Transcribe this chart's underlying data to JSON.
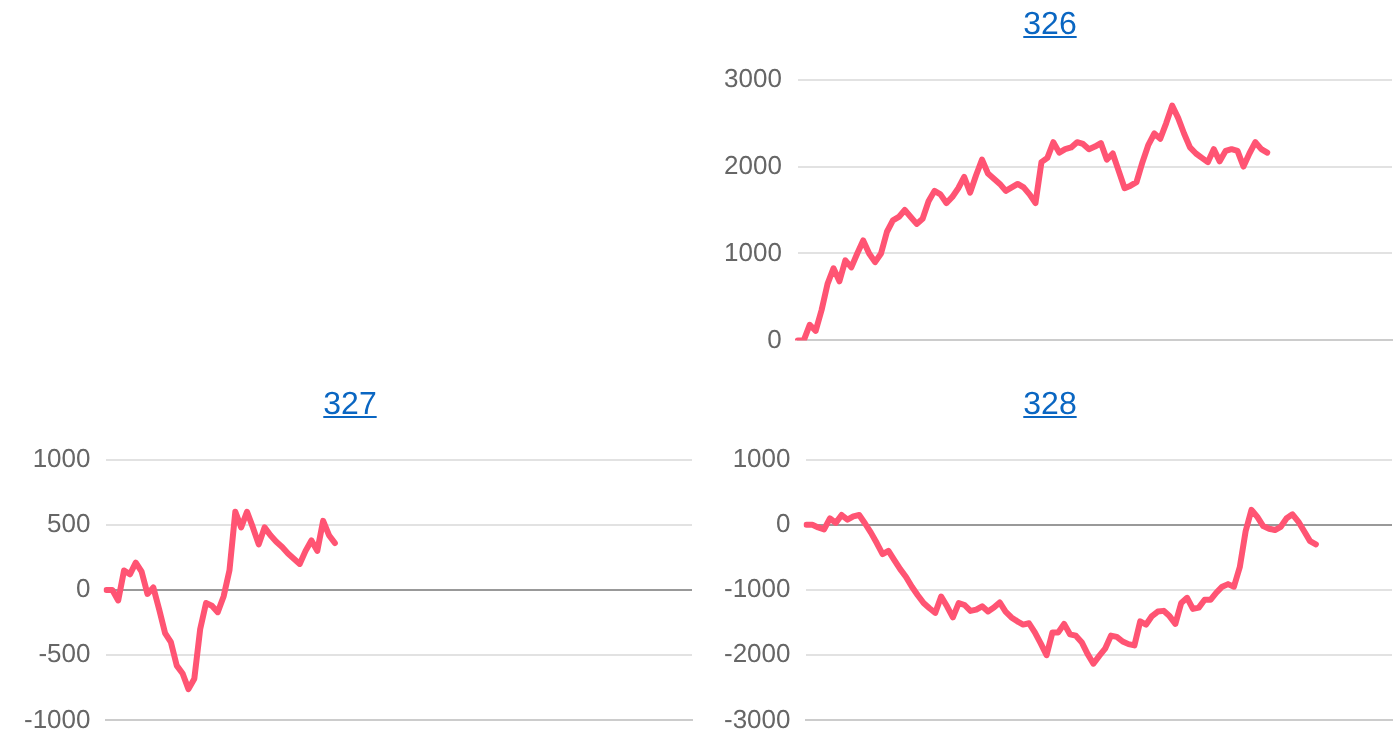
{
  "chart_data": [
    {
      "type": "line",
      "title": "326",
      "color": "#ff5473",
      "marker": "none",
      "line_style": "solid",
      "grid": "y",
      "tick_labels": "y",
      "ylim": [
        0,
        3000
      ],
      "yticks": [
        0,
        1000,
        2000,
        3000
      ],
      "categories": [
        null,
        null,
        null,
        null,
        null,
        null,
        null,
        null,
        null,
        null,
        null,
        null,
        null,
        null,
        null,
        null,
        null,
        null,
        null,
        null,
        null,
        null,
        null,
        null,
        null,
        null,
        null,
        null,
        null,
        null,
        null,
        null,
        null,
        null,
        null,
        null,
        null,
        null,
        null,
        null,
        null,
        null,
        null,
        null,
        null,
        null,
        null,
        null,
        null,
        null,
        null,
        null,
        null,
        null,
        null,
        null,
        null,
        null,
        null,
        null,
        null,
        null,
        null,
        null,
        null,
        null,
        null,
        null,
        null,
        null,
        null,
        null,
        null,
        null,
        null,
        null,
        null,
        null,
        null,
        null,
        null,
        null,
        null,
        null,
        null,
        null,
        null,
        null,
        null,
        null,
        null,
        null,
        null,
        null,
        null,
        null,
        null,
        null,
        null,
        null,
        null
      ],
      "values": [
        0,
        0,
        180,
        110,
        350,
        650,
        830,
        680,
        920,
        840,
        1000,
        1150,
        1000,
        900,
        1000,
        1250,
        1380,
        1420,
        1500,
        1420,
        1340,
        1400,
        1600,
        1720,
        1680,
        1580,
        1650,
        1750,
        1880,
        1700,
        1900,
        2080,
        1920,
        1860,
        1800,
        1720,
        1760,
        1800,
        1760,
        1680,
        1580,
        2050,
        2100,
        2280,
        2160,
        2200,
        2220,
        2280,
        2260,
        2200,
        2230,
        2270,
        2080,
        2150,
        1950,
        1750,
        1780,
        1820,
        2050,
        2250,
        2380,
        2320,
        2500,
        2700,
        2560,
        2380,
        2220,
        2150,
        2100,
        2050,
        2200,
        2060,
        2180,
        2200,
        2180,
        2000,
        2150,
        2280,
        2200,
        2160,
        null,
        null,
        null,
        null,
        null,
        null,
        null,
        null,
        null,
        null,
        null,
        null,
        null,
        null,
        null,
        null,
        null,
        null,
        null,
        null,
        null
      ]
    },
    {
      "type": "line",
      "title": "327",
      "color": "#ff5473",
      "marker": "none",
      "line_style": "solid",
      "grid": "y",
      "tick_labels": "y",
      "ylim": [
        -1000,
        1000
      ],
      "yticks": [
        -1000,
        -500,
        0,
        500,
        1000
      ],
      "categories": [
        null,
        null,
        null,
        null,
        null,
        null,
        null,
        null,
        null,
        null,
        null,
        null,
        null,
        null,
        null,
        null,
        null,
        null,
        null,
        null,
        null,
        null,
        null,
        null,
        null,
        null,
        null,
        null,
        null,
        null,
        null,
        null,
        null,
        null,
        null,
        null,
        null,
        null,
        null,
        null,
        null,
        null,
        null,
        null,
        null,
        null,
        null,
        null,
        null,
        null,
        null,
        null,
        null,
        null,
        null,
        null,
        null,
        null,
        null,
        null,
        null,
        null,
        null,
        null,
        null,
        null,
        null,
        null,
        null,
        null,
        null,
        null,
        null,
        null,
        null,
        null,
        null,
        null,
        null,
        null,
        null,
        null,
        null,
        null,
        null,
        null,
        null,
        null,
        null,
        null,
        null,
        null,
        null,
        null,
        null,
        null,
        null,
        null,
        null,
        null,
        null
      ],
      "values": [
        0,
        0,
        -80,
        150,
        120,
        210,
        140,
        -30,
        20,
        -150,
        -330,
        -400,
        -580,
        -640,
        -760,
        -680,
        -300,
        -100,
        -120,
        -170,
        -50,
        150,
        600,
        480,
        600,
        480,
        350,
        480,
        420,
        370,
        330,
        280,
        240,
        200,
        300,
        380,
        300,
        530,
        420,
        360,
        null,
        null,
        null,
        null,
        null,
        null,
        null,
        null,
        null,
        null,
        null,
        null,
        null,
        null,
        null,
        null,
        null,
        null,
        null,
        null,
        null,
        null,
        null,
        null,
        null,
        null,
        null,
        null,
        null,
        null,
        null,
        null,
        null,
        null,
        null,
        null,
        null,
        null,
        null,
        null,
        null,
        null,
        null,
        null,
        null,
        null,
        null,
        null,
        null,
        null,
        null,
        null,
        null,
        null,
        null,
        null,
        null,
        null,
        null,
        null,
        null
      ]
    },
    {
      "type": "line",
      "title": "328",
      "color": "#ff5473",
      "marker": "none",
      "line_style": "solid",
      "grid": "y",
      "tick_labels": "y",
      "ylim": [
        -3000,
        1000
      ],
      "yticks": [
        -3000,
        -2000,
        -1000,
        0,
        1000
      ],
      "categories": [
        null,
        null,
        null,
        null,
        null,
        null,
        null,
        null,
        null,
        null,
        null,
        null,
        null,
        null,
        null,
        null,
        null,
        null,
        null,
        null,
        null,
        null,
        null,
        null,
        null,
        null,
        null,
        null,
        null,
        null,
        null,
        null,
        null,
        null,
        null,
        null,
        null,
        null,
        null,
        null,
        null,
        null,
        null,
        null,
        null,
        null,
        null,
        null,
        null,
        null,
        null,
        null,
        null,
        null,
        null,
        null,
        null,
        null,
        null,
        null,
        null,
        null,
        null,
        null,
        null,
        null,
        null,
        null,
        null,
        null,
        null,
        null,
        null,
        null,
        null,
        null,
        null,
        null,
        null,
        null,
        null,
        null,
        null,
        null,
        null,
        null,
        null,
        null,
        null,
        null,
        null,
        null,
        null,
        null,
        null,
        null,
        null,
        null,
        null,
        null,
        null
      ],
      "values": [
        0,
        0,
        -40,
        -70,
        100,
        30,
        150,
        80,
        130,
        150,
        20,
        -120,
        -280,
        -450,
        -400,
        -540,
        -680,
        -800,
        -950,
        -1080,
        -1200,
        -1280,
        -1350,
        -1100,
        -1250,
        -1420,
        -1200,
        -1230,
        -1320,
        -1300,
        -1250,
        -1330,
        -1270,
        -1190,
        -1330,
        -1420,
        -1480,
        -1530,
        -1510,
        -1650,
        -1820,
        -2000,
        -1650,
        -1650,
        -1520,
        -1680,
        -1700,
        -1800,
        -1980,
        -2130,
        -2010,
        -1900,
        -1700,
        -1720,
        -1790,
        -1830,
        -1850,
        -1480,
        -1530,
        -1400,
        -1330,
        -1320,
        -1400,
        -1520,
        -1200,
        -1120,
        -1290,
        -1270,
        -1150,
        -1150,
        -1040,
        -950,
        -910,
        -950,
        -650,
        -100,
        230,
        120,
        -20,
        -60,
        -80,
        -30,
        100,
        160,
        50,
        -100,
        -250,
        -300,
        null,
        null,
        null,
        null,
        null,
        null,
        null,
        null,
        null,
        null,
        null,
        null,
        null
      ]
    }
  ]
}
